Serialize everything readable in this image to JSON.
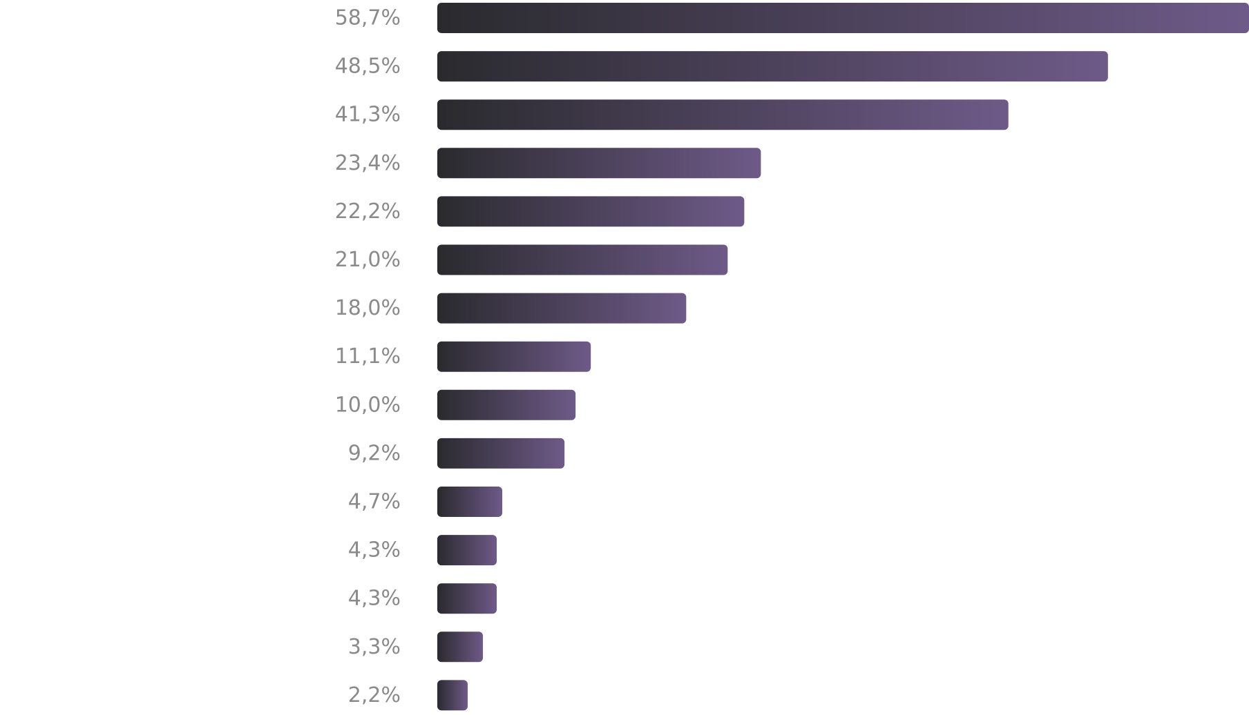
{
  "chart_data": {
    "type": "bar",
    "orientation": "horizontal",
    "values": [
      58.7,
      48.5,
      41.3,
      23.4,
      22.2,
      21.0,
      18.0,
      11.1,
      10.0,
      9.2,
      4.7,
      4.3,
      4.3,
      3.3,
      2.2
    ],
    "value_labels": [
      "58,7%",
      "48,5%",
      "41,3%",
      "23,4%",
      "22,2%",
      "21,0%",
      "18,0%",
      "11,1%",
      "10,0%",
      "9,2%",
      "4,7%",
      "4,3%",
      "4,3%",
      "3,3%",
      "2,2%"
    ],
    "unit": "%",
    "xlim": [
      0,
      58.7
    ],
    "grid": false,
    "legend": "none",
    "colors": {
      "bar_start": "#2a2a2e",
      "bar_end": "#6e5a88",
      "label": "#8a8a8a",
      "background": "#ffffff"
    }
  }
}
